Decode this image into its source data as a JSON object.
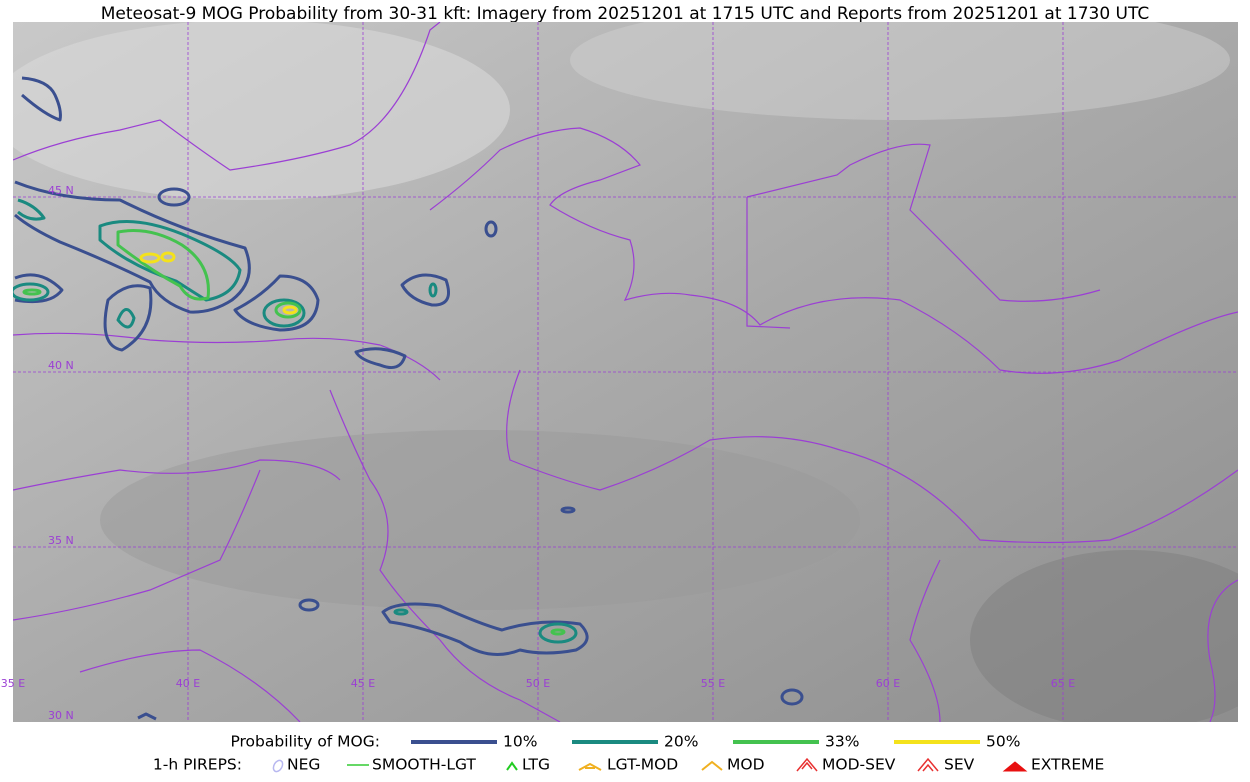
{
  "title": "Meteosat-9 MOG Probability from 30-31 kft: Imagery from 20251201 at 1715 UTC and Reports from 20251201 at 1730 UTC",
  "map": {
    "lat_labels": [
      "45 N",
      "40 N",
      "35 N",
      "30 N"
    ],
    "lon_labels": [
      "35 E",
      "40 E",
      "45 E",
      "50 E",
      "55 E",
      "60 E",
      "65 E"
    ]
  },
  "legend": {
    "probability": {
      "label": "Probability of MOG:",
      "items": [
        {
          "label": "10%",
          "color": "#3a4f8f"
        },
        {
          "label": "20%",
          "color": "#1a8a80"
        },
        {
          "label": "33%",
          "color": "#44c24f"
        },
        {
          "label": "50%",
          "color": "#f4e21c"
        }
      ]
    },
    "pireps": {
      "label": "1-h PIREPS:",
      "items": [
        {
          "label": "NEG",
          "color": "#b8b8f0"
        },
        {
          "label": "SMOOTH-LGT",
          "color": "#33cc33"
        },
        {
          "label": "LTG",
          "color": "#22cc22"
        },
        {
          "label": "LGT-MOD",
          "color": "#f0b020"
        },
        {
          "label": "MOD",
          "color": "#f0b020"
        },
        {
          "label": "MOD-SEV",
          "color": "#e83030"
        },
        {
          "label": "SEV",
          "color": "#e83030"
        },
        {
          "label": "EXTREME",
          "color": "#e81010"
        }
      ]
    }
  }
}
